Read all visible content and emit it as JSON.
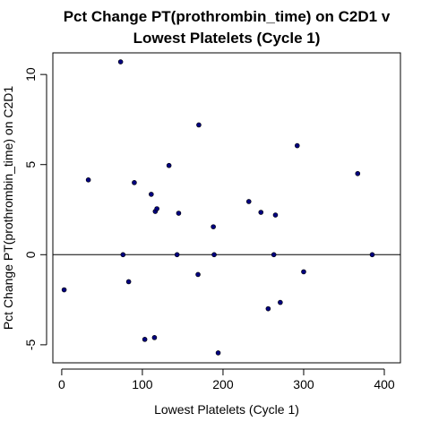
{
  "chart_data": {
    "type": "scatter",
    "title": [
      "Pct Change PT(prothrombin_time) on C2D1 v",
      "Lowest Platelets (Cycle 1)"
    ],
    "xlabel": "Lowest Platelets (Cycle 1)",
    "ylabel": "Pct Change PT(prothrombin_time) on C2D1",
    "xlim": [
      -11,
      420
    ],
    "ylim": [
      -6.0,
      11.2
    ],
    "xticks": [
      0,
      100,
      200,
      300,
      400
    ],
    "yticks": [
      -5,
      0,
      5,
      10
    ],
    "reference_line": {
      "orientation": "horizontal",
      "y": 0
    },
    "point_color": "#000080",
    "points": [
      {
        "x": 3,
        "y": -1.95
      },
      {
        "x": 33,
        "y": 4.15
      },
      {
        "x": 73,
        "y": 10.7
      },
      {
        "x": 76,
        "y": 0.0
      },
      {
        "x": 83,
        "y": -1.5
      },
      {
        "x": 90,
        "y": 4.0
      },
      {
        "x": 103,
        "y": -4.7
      },
      {
        "x": 111,
        "y": 3.35
      },
      {
        "x": 115,
        "y": -4.6
      },
      {
        "x": 116,
        "y": 2.4
      },
      {
        "x": 118,
        "y": 2.55
      },
      {
        "x": 133,
        "y": 4.95
      },
      {
        "x": 143,
        "y": 0.0
      },
      {
        "x": 145,
        "y": 2.3
      },
      {
        "x": 169,
        "y": -1.1
      },
      {
        "x": 170,
        "y": 7.2
      },
      {
        "x": 188,
        "y": 1.55
      },
      {
        "x": 189,
        "y": 0.0
      },
      {
        "x": 194,
        "y": -5.45
      },
      {
        "x": 232,
        "y": 2.95
      },
      {
        "x": 247,
        "y": 2.35
      },
      {
        "x": 256,
        "y": -3.0
      },
      {
        "x": 263,
        "y": 0.0
      },
      {
        "x": 265,
        "y": 2.2
      },
      {
        "x": 271,
        "y": -2.65
      },
      {
        "x": 292,
        "y": 6.05
      },
      {
        "x": 300,
        "y": -0.95
      },
      {
        "x": 367,
        "y": 4.5
      },
      {
        "x": 385,
        "y": 0.0
      }
    ]
  }
}
